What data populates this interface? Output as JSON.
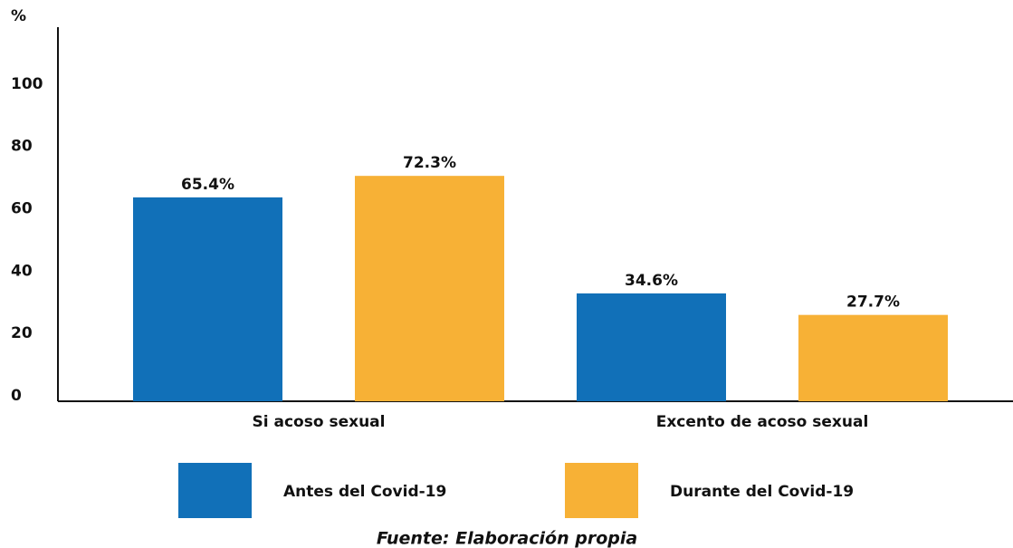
{
  "chart_data": {
    "type": "bar",
    "y_label": "%",
    "categories": [
      "Si acoso sexual",
      "Excento de acoso sexual"
    ],
    "series": [
      {
        "name": "Antes del Covid-19",
        "color": "#1170b8",
        "values": [
          65.4,
          34.6
        ],
        "value_labels": [
          "65.4%",
          "34.6%"
        ]
      },
      {
        "name": "Durante del Covid-19",
        "color": "#f7b136",
        "values": [
          72.3,
          27.7
        ],
        "value_labels": [
          "72.3%",
          "27.7%"
        ]
      }
    ],
    "ylim": [
      0,
      120
    ],
    "yticks": [
      0,
      20,
      40,
      60,
      80,
      100
    ],
    "grid": false,
    "source": "Fuente: Elaboración propia"
  }
}
